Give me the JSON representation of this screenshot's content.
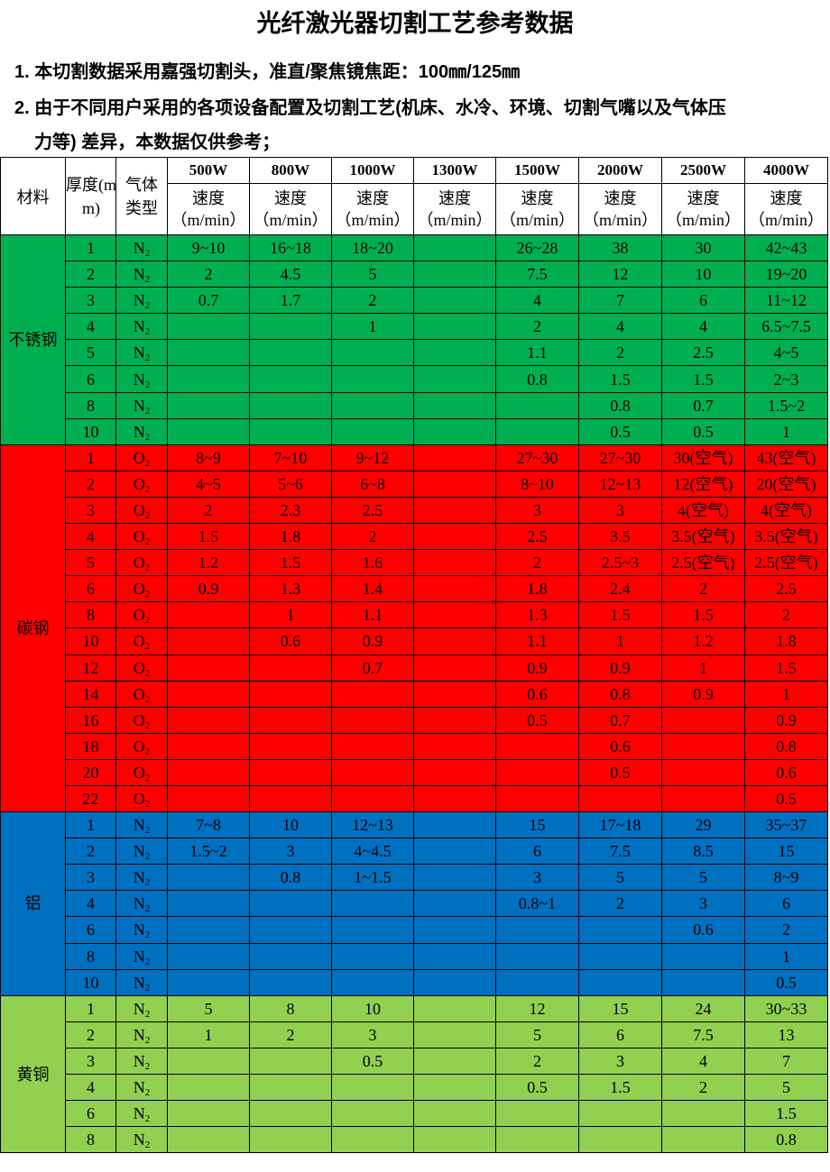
{
  "title": "光纤激光器切割工艺参考数据",
  "notes": [
    "1. 本切割数据采用嘉强切割头，准直/聚焦镜焦距：100㎜/125㎜",
    "2. 由于不同用户采用的各项设备配置及切割工艺(机床、水冷、环境、切割气嘴以及气体压",
    "力等) 差异，本数据仅供参考；"
  ],
  "table": {
    "headers": {
      "material": "材料",
      "thickness": "厚度(mm)",
      "gas": "气体类型",
      "speed": "速度",
      "speed_unit": "（m/min）",
      "powers": [
        "500W",
        "800W",
        "1000W",
        "1300W",
        "1500W",
        "2000W",
        "2500W",
        "4000W"
      ]
    },
    "groups": [
      {
        "material": "不锈钢",
        "color": "#00b050",
        "gas": "N",
        "gas_sub": "2",
        "rows": [
          {
            "t": "1",
            "v": [
              "9~10",
              "16~18",
              "18~20",
              "",
              "26~28",
              "38",
              "30",
              "42~43"
            ]
          },
          {
            "t": "2",
            "v": [
              "2",
              "4.5",
              "5",
              "",
              "7.5",
              "12",
              "10",
              "19~20"
            ]
          },
          {
            "t": "3",
            "v": [
              "0.7",
              "1.7",
              "2",
              "",
              "4",
              "7",
              "6",
              "11~12"
            ]
          },
          {
            "t": "4",
            "v": [
              "",
              "",
              "1",
              "",
              "2",
              "4",
              "4",
              "6.5~7.5"
            ]
          },
          {
            "t": "5",
            "v": [
              "",
              "",
              "",
              "",
              "1.1",
              "2",
              "2.5",
              "4~5"
            ]
          },
          {
            "t": "6",
            "v": [
              "",
              "",
              "",
              "",
              "0.8",
              "1.5",
              "1.5",
              "2~3"
            ]
          },
          {
            "t": "8",
            "v": [
              "",
              "",
              "",
              "",
              "",
              "0.8",
              "0.7",
              "1.5~2"
            ]
          },
          {
            "t": "10",
            "v": [
              "",
              "",
              "",
              "",
              "",
              "0.5",
              "0.5",
              "1"
            ]
          }
        ]
      },
      {
        "material": "碳钢",
        "color": "#ff0000",
        "gas": "O",
        "gas_sub": "2",
        "rows": [
          {
            "t": "1",
            "v": [
              "8~9",
              "7~10",
              "9~12",
              "",
              "27~30",
              "27~30",
              "30(空气)",
              "43(空气)"
            ]
          },
          {
            "t": "2",
            "v": [
              "4~5",
              "5~6",
              "6~8",
              "",
              "8~10",
              "12~13",
              "12(空气)",
              "20(空气)"
            ]
          },
          {
            "t": "3",
            "v": [
              "2",
              "2.3",
              "2.5",
              "",
              "3",
              "3",
              "4(空气)",
              "4(空气)"
            ]
          },
          {
            "t": "4",
            "v": [
              "1.5",
              "1.8",
              "2",
              "",
              "2.5",
              "3.5",
              "3.5(空气)",
              "3.5(空气)"
            ]
          },
          {
            "t": "5",
            "v": [
              "1.2",
              "1.5",
              "1.6",
              "",
              "2",
              "2.5~3",
              "2.5(空气)",
              "2.5(空气)"
            ]
          },
          {
            "t": "6",
            "v": [
              "0.9",
              "1.3",
              "1.4",
              "",
              "1.8",
              "2.4",
              "2",
              "2.5"
            ]
          },
          {
            "t": "8",
            "v": [
              "",
              "1",
              "1.1",
              "",
              "1.3",
              "1.5",
              "1.5",
              "2"
            ]
          },
          {
            "t": "10",
            "v": [
              "",
              "0.6",
              "0.9",
              "",
              "1.1",
              "1",
              "1.2",
              "1.8"
            ]
          },
          {
            "t": "12",
            "v": [
              "",
              "",
              "0.7",
              "",
              "0.9",
              "0.9",
              "1",
              "1.5"
            ]
          },
          {
            "t": "14",
            "v": [
              "",
              "",
              "",
              "",
              "0.6",
              "0.8",
              "0.9",
              "1"
            ]
          },
          {
            "t": "16",
            "v": [
              "",
              "",
              "",
              "",
              "0.5",
              "0.7",
              "",
              "0.9"
            ]
          },
          {
            "t": "18",
            "v": [
              "",
              "",
              "",
              "",
              "",
              "0.6",
              "",
              "0.8"
            ]
          },
          {
            "t": "20",
            "v": [
              "",
              "",
              "",
              "",
              "",
              "0.5",
              "",
              "0.6"
            ]
          },
          {
            "t": "22",
            "v": [
              "",
              "",
              "",
              "",
              "",
              "",
              "",
              "0.5"
            ]
          }
        ]
      },
      {
        "material": "铝",
        "color": "#0070c0",
        "gas": "N",
        "gas_sub": "2",
        "rows": [
          {
            "t": "1",
            "v": [
              "7~8",
              "10",
              "12~13",
              "",
              "15",
              "17~18",
              "29",
              "35~37"
            ]
          },
          {
            "t": "2",
            "v": [
              "1.5~2",
              "3",
              "4~4.5",
              "",
              "6",
              "7.5",
              "8.5",
              "15"
            ]
          },
          {
            "t": "3",
            "v": [
              "",
              "0.8",
              "1~1.5",
              "",
              "3",
              "5",
              "5",
              "8~9"
            ]
          },
          {
            "t": "4",
            "v": [
              "",
              "",
              "",
              "",
              "0.8~1",
              "2",
              "3",
              "6"
            ]
          },
          {
            "t": "6",
            "v": [
              "",
              "",
              "",
              "",
              "",
              "",
              "0.6",
              "2"
            ]
          },
          {
            "t": "8",
            "v": [
              "",
              "",
              "",
              "",
              "",
              "",
              "",
              "1"
            ]
          },
          {
            "t": "10",
            "v": [
              "",
              "",
              "",
              "",
              "",
              "",
              "",
              "0.5"
            ]
          }
        ]
      },
      {
        "material": "黄铜",
        "color": "#92d050",
        "gas": "N",
        "gas_sub": "2",
        "rows": [
          {
            "t": "1",
            "v": [
              "5",
              "8",
              "10",
              "",
              "12",
              "15",
              "24",
              "30~33"
            ]
          },
          {
            "t": "2",
            "v": [
              "1",
              "2",
              "3",
              "",
              "5",
              "6",
              "7.5",
              "13"
            ]
          },
          {
            "t": "3",
            "v": [
              "",
              "",
              "0.5",
              "",
              "2",
              "3",
              "4",
              "7"
            ]
          },
          {
            "t": "4",
            "v": [
              "",
              "",
              "",
              "",
              "0.5",
              "1.5",
              "2",
              "5"
            ]
          },
          {
            "t": "6",
            "v": [
              "",
              "",
              "",
              "",
              "",
              "",
              "",
              "1.5"
            ]
          },
          {
            "t": "8",
            "v": [
              "",
              "",
              "",
              "",
              "",
              "",
              "",
              "0.8"
            ]
          }
        ]
      }
    ]
  }
}
